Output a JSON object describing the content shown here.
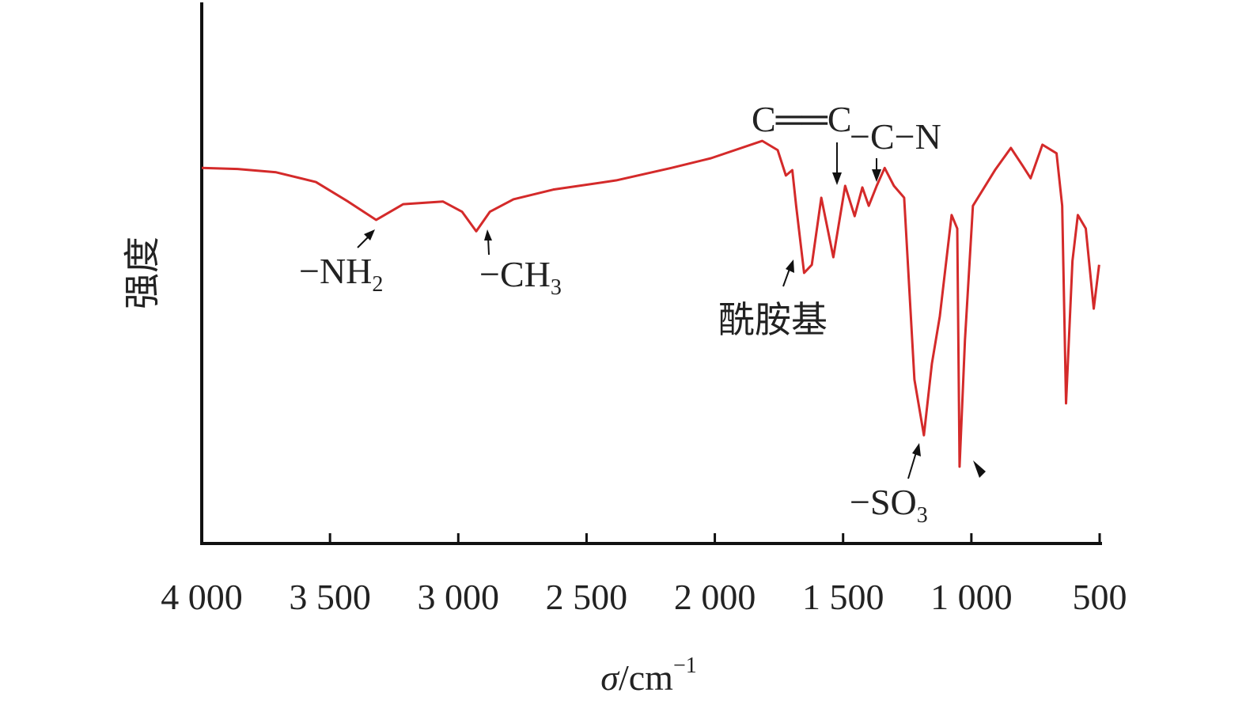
{
  "chart_data": {
    "type": "line",
    "ylabel": "强度",
    "xlabel": {
      "symbol": "σ",
      "unit": "/cm",
      "superscript": "−1"
    },
    "xlim": [
      4000,
      500
    ],
    "ylim": [
      0,
      100
    ],
    "xticks": [
      {
        "value": 4000,
        "label": "4 000"
      },
      {
        "value": 3500,
        "label": "3 500"
      },
      {
        "value": 3000,
        "label": "3 000"
      },
      {
        "value": 2500,
        "label": "2 500"
      },
      {
        "value": 2000,
        "label": "2 000"
      },
      {
        "value": 1500,
        "label": "1 500"
      },
      {
        "value": 1000,
        "label": "1 000"
      },
      500
    ],
    "x": [
      4000,
      3860,
      3710,
      3555,
      3430,
      3320,
      3215,
      3060,
      2985,
      2930,
      2877,
      2785,
      2630,
      2385,
      2170,
      2015,
      1815,
      1755,
      1723,
      1698,
      1683,
      1652,
      1622,
      1585,
      1538,
      1492,
      1455,
      1425,
      1400,
      1369,
      1338,
      1302,
      1262,
      1222,
      1185,
      1154,
      1123,
      1077,
      1055,
      1046,
      1025,
      994,
      908,
      846,
      800,
      769,
      723,
      668,
      646,
      631,
      606,
      585,
      554,
      523,
      502
    ],
    "series": [
      {
        "color": "#d42a2a",
        "values": [
          69.4,
          69.2,
          68.6,
          66.8,
          63.2,
          59.8,
          62.7,
          63.2,
          61.3,
          57.7,
          61.3,
          63.6,
          65.4,
          67.1,
          69.4,
          71.2,
          74.4,
          72.7,
          68.0,
          69.0,
          62.4,
          50.0,
          51.5,
          63.9,
          52.9,
          66.1,
          60.5,
          65.8,
          62.4,
          66.1,
          69.4,
          66.1,
          63.9,
          30.3,
          20.0,
          33.2,
          42.0,
          60.7,
          58.2,
          14.2,
          37.6,
          62.4,
          69.0,
          73.1,
          69.8,
          67.5,
          73.7,
          72.1,
          62.4,
          25.9,
          52.2,
          60.7,
          58.2,
          43.4,
          51.5
        ]
      }
    ],
    "annotations": [
      {
        "text": "−NH",
        "subscript": "2"
      },
      {
        "text": "−CH",
        "subscript": "3"
      },
      {
        "text": "C══C"
      },
      {
        "text": "−C−N"
      },
      {
        "text": "酰胺基"
      },
      {
        "text": "−SO",
        "subscript": "3"
      }
    ]
  }
}
